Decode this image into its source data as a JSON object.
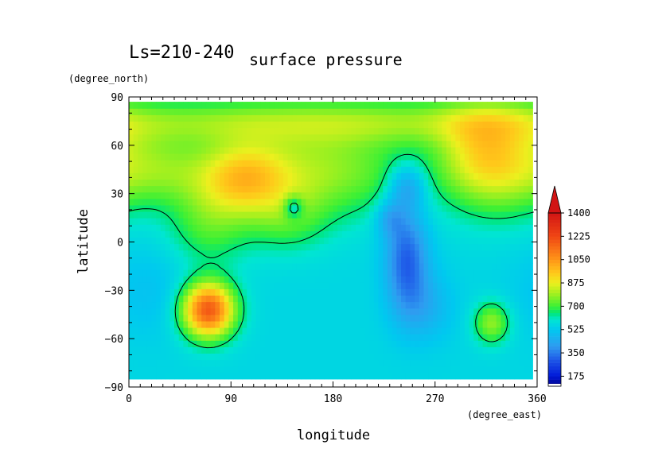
{
  "chart_data": {
    "type": "heatmap",
    "title_left": "Ls=210-240",
    "title": "surface pressure",
    "xlabel": "longitude",
    "ylabel": "latitude",
    "xunit": "(degree_east)",
    "yunit": "(degree_north)",
    "xlim": [
      0,
      360
    ],
    "ylim": [
      -90,
      90
    ],
    "data_lat_range": [
      -85,
      85
    ],
    "xticks": [
      "0",
      "90",
      "180",
      "270",
      "360"
    ],
    "yticks": [
      "90",
      "60",
      "30",
      "0",
      "−30",
      "−60",
      "−90"
    ],
    "contour_level": 650,
    "colorbar": {
      "ticks": [
        "175",
        "350",
        "525",
        "700",
        "875",
        "1050",
        "1225",
        "1400"
      ],
      "extend": "max",
      "stops": [
        {
          "value": 100,
          "color": "#000080"
        },
        {
          "value": 175,
          "color": "#0018d8"
        },
        {
          "value": 300,
          "color": "#1f5ae8"
        },
        {
          "value": 400,
          "color": "#2f9cf0"
        },
        {
          "value": 525,
          "color": "#00c8f0"
        },
        {
          "value": 600,
          "color": "#00e6d2"
        },
        {
          "value": 650,
          "color": "#00e676"
        },
        {
          "value": 700,
          "color": "#3cf034"
        },
        {
          "value": 800,
          "color": "#a8f01e"
        },
        {
          "value": 875,
          "color": "#ecf01e"
        },
        {
          "value": 950,
          "color": "#ffc81a"
        },
        {
          "value": 1050,
          "color": "#ff9618"
        },
        {
          "value": 1225,
          "color": "#f04614"
        },
        {
          "value": 1400,
          "color": "#d21414"
        }
      ]
    },
    "background_value": 560,
    "field": [
      {
        "lon": 180,
        "lat": 75,
        "amp": 200,
        "slon": 400,
        "slat": 10
      },
      {
        "lon": 100,
        "lat": 40,
        "amp": 310,
        "slon": 28,
        "slat": 16
      },
      {
        "lon": 30,
        "lat": 45,
        "amp": 170,
        "slon": 30,
        "slat": 15
      },
      {
        "lon": 170,
        "lat": 45,
        "amp": 220,
        "slon": 55,
        "slat": 20
      },
      {
        "lon": 330,
        "lat": 50,
        "amp": 280,
        "slon": 30,
        "slat": 22
      },
      {
        "lon": 300,
        "lat": 55,
        "amp": 150,
        "slon": 25,
        "slat": 20
      },
      {
        "lon": 70,
        "lat": 10,
        "amp": 140,
        "slon": 25,
        "slat": 18
      },
      {
        "lon": 140,
        "lat": 15,
        "amp": 120,
        "slon": 25,
        "slat": 15
      },
      {
        "lon": 70,
        "lat": -42,
        "amp": 630,
        "slon": 16,
        "slat": 12
      },
      {
        "lon": 320,
        "lat": -50,
        "amp": 220,
        "slon": 11,
        "slat": 9
      },
      {
        "lon": 245,
        "lat": -10,
        "amp": -250,
        "slon": 13,
        "slat": 22
      },
      {
        "lon": 245,
        "lat": 35,
        "amp": -170,
        "slon": 12,
        "slat": 10
      },
      {
        "lon": 230,
        "lat": 15,
        "amp": -120,
        "slon": 9,
        "slat": 8
      },
      {
        "lon": 260,
        "lat": -40,
        "amp": -100,
        "slon": 18,
        "slat": 15
      },
      {
        "lon": 145,
        "lat": 22,
        "amp": -200,
        "slon": 6,
        "slat": 5
      },
      {
        "lon": 20,
        "lat": -30,
        "amp": -50,
        "slon": 30,
        "slat": 20
      }
    ]
  }
}
